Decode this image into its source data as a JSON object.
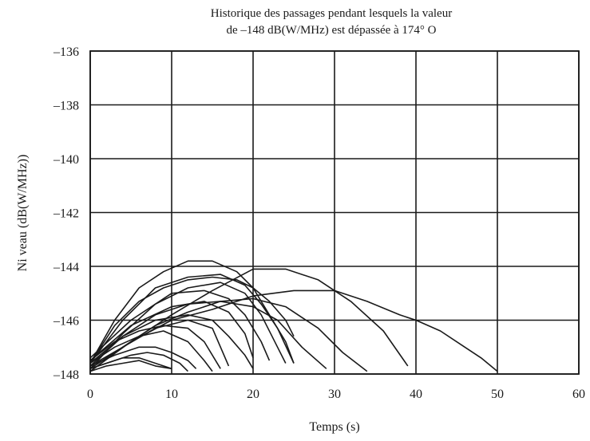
{
  "colors": {
    "background": "#ffffff",
    "line": "#1a1a1a",
    "grid": "#1a1a1a"
  },
  "chart_data": {
    "type": "line",
    "title_lines": [
      "Historique des passages pendant lesquels la valeur",
      "de –148 dB(W/MHz) est dépassée à 174° O"
    ],
    "xlabel": "Temps (s)",
    "ylabel": "Ni veau (dB(W/MHz))",
    "xlim": [
      0,
      60
    ],
    "ylim": [
      -148,
      -136
    ],
    "xticks": [
      0,
      10,
      20,
      30,
      40,
      50,
      60
    ],
    "yticks": [
      -136,
      -138,
      -140,
      -142,
      -144,
      -146,
      -148
    ],
    "ytick_labels": [
      "–136",
      "–138",
      "–140",
      "–142",
      "–144",
      "–146",
      "–148"
    ],
    "grid": true,
    "legend": "none",
    "series": [
      {
        "values": [
          [
            0,
            -147.9
          ],
          [
            2,
            -147.7
          ],
          [
            4,
            -147.6
          ],
          [
            6,
            -147.5
          ],
          [
            7,
            -147.6
          ],
          [
            8,
            -147.7
          ],
          [
            10,
            -147.8
          ]
        ]
      },
      {
        "values": [
          [
            0,
            -147.8
          ],
          [
            2,
            -147.6
          ],
          [
            4,
            -147.4
          ],
          [
            6,
            -147.4
          ],
          [
            8,
            -147.6
          ],
          [
            10,
            -147.8
          ]
        ]
      },
      {
        "values": [
          [
            0,
            -147.8
          ],
          [
            3,
            -147.5
          ],
          [
            5,
            -147.3
          ],
          [
            7,
            -147.2
          ],
          [
            9,
            -147.3
          ],
          [
            11,
            -147.6
          ],
          [
            12,
            -147.9
          ]
        ]
      },
      {
        "values": [
          [
            0,
            -147.7
          ],
          [
            3,
            -147.3
          ],
          [
            6,
            -147.0
          ],
          [
            8,
            -147.0
          ],
          [
            10,
            -147.2
          ],
          [
            12,
            -147.5
          ],
          [
            13,
            -147.8
          ]
        ]
      },
      {
        "values": [
          [
            0,
            -147.6
          ],
          [
            3,
            -147.0
          ],
          [
            6,
            -146.6
          ],
          [
            9,
            -146.4
          ],
          [
            12,
            -146.8
          ],
          [
            14,
            -147.5
          ],
          [
            15,
            -147.9
          ]
        ]
      },
      {
        "values": [
          [
            0,
            -147.5
          ],
          [
            3,
            -146.8
          ],
          [
            6,
            -146.4
          ],
          [
            9,
            -146.2
          ],
          [
            12,
            -146.3
          ],
          [
            14,
            -146.8
          ],
          [
            16,
            -147.8
          ]
        ]
      },
      {
        "values": [
          [
            0,
            -147.7
          ],
          [
            4,
            -147.0
          ],
          [
            8,
            -146.3
          ],
          [
            12,
            -146.0
          ],
          [
            15,
            -146.3
          ],
          [
            17,
            -147.7
          ]
        ]
      },
      {
        "values": [
          [
            0,
            -147.6
          ],
          [
            4,
            -146.6
          ],
          [
            8,
            -146.0
          ],
          [
            12,
            -145.8
          ],
          [
            15,
            -146.0
          ],
          [
            17,
            -146.6
          ],
          [
            19,
            -147.3
          ],
          [
            20,
            -147.8
          ]
        ]
      },
      {
        "values": [
          [
            0,
            -147.5
          ],
          [
            5,
            -146.2
          ],
          [
            10,
            -145.5
          ],
          [
            14,
            -145.3
          ],
          [
            17,
            -145.7
          ],
          [
            19,
            -146.5
          ],
          [
            20,
            -147.4
          ]
        ]
      },
      {
        "values": [
          [
            0,
            -147.4
          ],
          [
            5,
            -146.0
          ],
          [
            10,
            -145.0
          ],
          [
            14,
            -144.9
          ],
          [
            17,
            -145.2
          ],
          [
            19,
            -145.8
          ],
          [
            21,
            -146.8
          ],
          [
            22,
            -147.5
          ]
        ]
      },
      {
        "values": [
          [
            0,
            -147.8
          ],
          [
            4,
            -146.5
          ],
          [
            8,
            -145.4
          ],
          [
            12,
            -144.8
          ],
          [
            16,
            -144.6
          ],
          [
            19,
            -145.0
          ],
          [
            21,
            -145.8
          ],
          [
            23,
            -147.0
          ],
          [
            24,
            -147.6
          ]
        ]
      },
      {
        "values": [
          [
            0,
            -147.6
          ],
          [
            4,
            -146.0
          ],
          [
            8,
            -144.8
          ],
          [
            12,
            -144.4
          ],
          [
            16,
            -144.3
          ],
          [
            19,
            -144.7
          ],
          [
            21,
            -145.4
          ],
          [
            23,
            -146.3
          ],
          [
            25,
            -147.6
          ]
        ]
      },
      {
        "values": [
          [
            0,
            -147.6
          ],
          [
            3,
            -146.0
          ],
          [
            6,
            -144.8
          ],
          [
            9,
            -144.2
          ],
          [
            12,
            -143.8
          ],
          [
            15,
            -143.8
          ],
          [
            18,
            -144.2
          ],
          [
            20,
            -144.8
          ],
          [
            22,
            -145.8
          ],
          [
            24,
            -146.8
          ],
          [
            25,
            -147.6
          ]
        ]
      },
      {
        "values": [
          [
            0,
            -147.6
          ],
          [
            3,
            -146.2
          ],
          [
            6,
            -145.3
          ],
          [
            9,
            -144.8
          ],
          [
            12,
            -144.5
          ],
          [
            15,
            -144.4
          ],
          [
            18,
            -144.5
          ],
          [
            20,
            -144.8
          ],
          [
            22,
            -145.3
          ],
          [
            24,
            -146.0
          ],
          [
            25,
            -146.6
          ]
        ]
      },
      {
        "values": [
          [
            0,
            -147.7
          ],
          [
            4,
            -146.6
          ],
          [
            8,
            -145.8
          ],
          [
            12,
            -145.4
          ],
          [
            16,
            -145.3
          ],
          [
            20,
            -145.5
          ],
          [
            23,
            -146.0
          ],
          [
            26,
            -147.0
          ],
          [
            29,
            -147.8
          ]
        ]
      },
      {
        "values": [
          [
            0,
            -147.9
          ],
          [
            4,
            -147.0
          ],
          [
            8,
            -146.2
          ],
          [
            12,
            -145.7
          ],
          [
            16,
            -145.3
          ],
          [
            20,
            -145.2
          ],
          [
            24,
            -145.5
          ],
          [
            28,
            -146.3
          ],
          [
            31,
            -147.2
          ],
          [
            34,
            -147.9
          ]
        ]
      },
      {
        "values": [
          [
            0,
            -147.9
          ],
          [
            5,
            -146.8
          ],
          [
            10,
            -145.8
          ],
          [
            15,
            -144.9
          ],
          [
            20,
            -144.1
          ],
          [
            24,
            -144.1
          ],
          [
            28,
            -144.5
          ],
          [
            32,
            -145.3
          ],
          [
            36,
            -146.4
          ],
          [
            39,
            -147.7
          ]
        ]
      },
      {
        "values": [
          [
            0,
            -147.8
          ],
          [
            5,
            -146.8
          ],
          [
            10,
            -146.0
          ],
          [
            15,
            -145.6
          ],
          [
            20,
            -145.1
          ],
          [
            25,
            -144.9
          ],
          [
            30,
            -144.9
          ],
          [
            34,
            -145.3
          ],
          [
            38,
            -145.8
          ],
          [
            40,
            -146.0
          ],
          [
            43,
            -146.4
          ],
          [
            46,
            -147.0
          ],
          [
            48,
            -147.4
          ],
          [
            50,
            -147.9
          ]
        ]
      }
    ]
  }
}
